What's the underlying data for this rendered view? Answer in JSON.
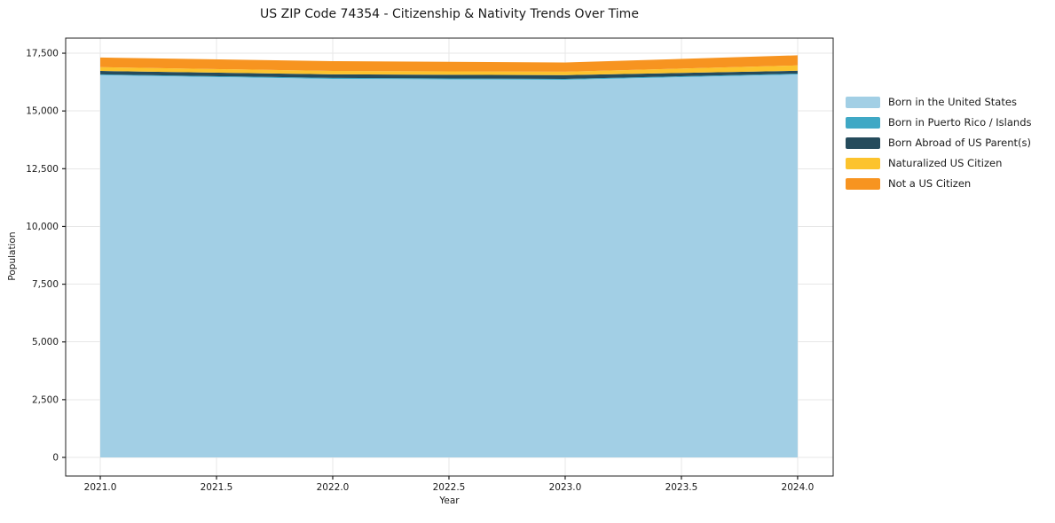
{
  "title": "US ZIP Code 74354 - Citizenship & Nativity Trends Over Time",
  "chart_data": {
    "type": "area",
    "stacked": true,
    "title": "US ZIP Code 74354 - Citizenship & Nativity Trends Over Time",
    "xlabel": "Year",
    "ylabel": "Population",
    "x": [
      2021,
      2022,
      2023,
      2024
    ],
    "series": [
      {
        "name": "Born in the United States",
        "color": "#a2cfe5",
        "values": [
          16550,
          16390,
          16350,
          16580
        ]
      },
      {
        "name": "Born in Puerto Rico / Islands",
        "color": "#3fa8c5",
        "values": [
          35,
          40,
          40,
          40
        ]
      },
      {
        "name": "Born Abroad of US Parent(s)",
        "color": "#254b5c",
        "values": [
          150,
          155,
          160,
          120
        ]
      },
      {
        "name": "Naturalized US Citizen",
        "color": "#fcc32d",
        "values": [
          160,
          150,
          150,
          230
        ]
      },
      {
        "name": "Not a US Citizen",
        "color": "#f79420",
        "values": [
          420,
          420,
          400,
          440
        ]
      }
    ],
    "xticks": {
      "values": [
        2021.0,
        2021.5,
        2022.0,
        2022.5,
        2023.0,
        2023.5,
        2024.0
      ],
      "labels": [
        "2021.0",
        "2021.5",
        "2022.0",
        "2022.5",
        "2023.0",
        "2023.5",
        "2024.0"
      ]
    },
    "yticks": {
      "values": [
        0,
        2500,
        5000,
        7500,
        10000,
        12500,
        15000,
        17500
      ],
      "labels": [
        "0",
        "2,500",
        "5,000",
        "7,500",
        "10,000",
        "12,500",
        "15,000",
        "17,500"
      ]
    },
    "xlim": [
      2020.851,
      2024.153
    ],
    "ylim": [
      -806,
      18154
    ],
    "grid": true,
    "legend_position": "right-outside"
  },
  "colors": {
    "background": "#ffffff",
    "grid": "#e7e7e7",
    "spine": "#1f1f1f",
    "text": "#1a1a1a"
  }
}
